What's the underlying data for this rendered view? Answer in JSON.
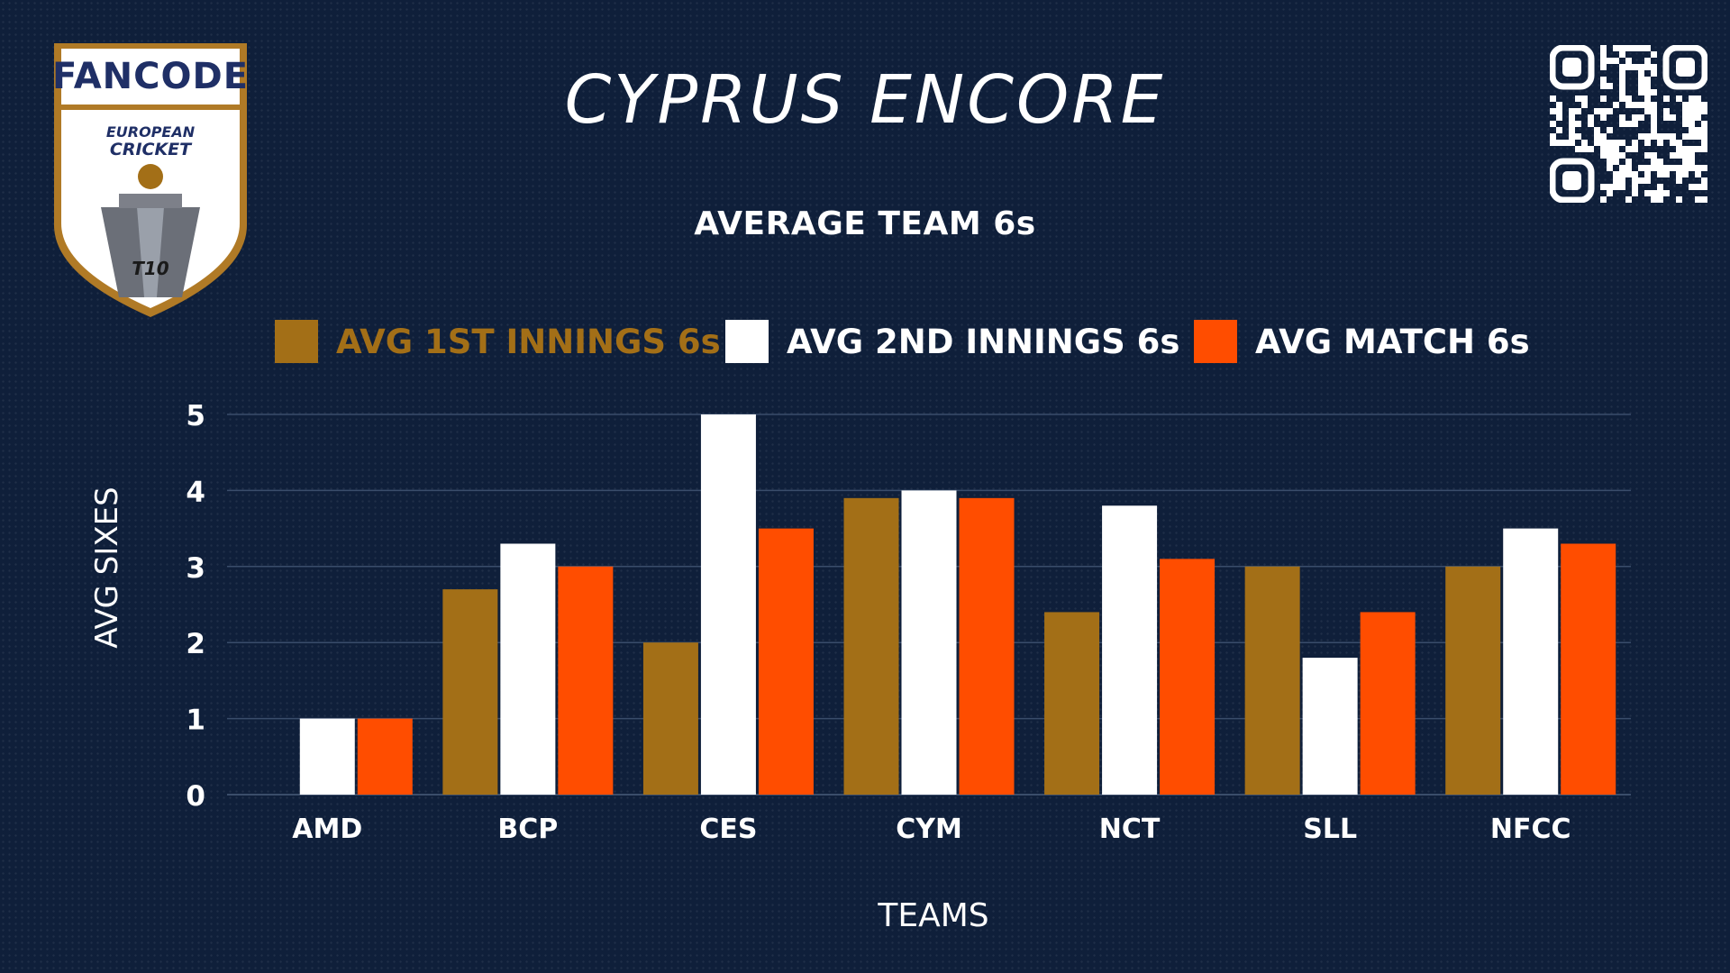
{
  "header": {
    "logo": {
      "brand": "FANCODE",
      "line1": "EUROPEAN",
      "line2": "CRICKET",
      "badge": "T10",
      "icon": "cricket-trophy-shield-logo"
    },
    "title": "CYPRUS ENCORE",
    "qr_icon": "qr-code-icon"
  },
  "colors": {
    "background": "#0f1f3a",
    "first_innings": "#a36f17",
    "second_innings": "#ffffff",
    "match": "#ff4d00",
    "gridline": "#3a4d6b"
  },
  "chart_data": {
    "type": "bar",
    "title": "AVERAGE TEAM 6s",
    "xlabel": "TEAMS",
    "ylabel": "AVG SIXES",
    "ylim": [
      0,
      5
    ],
    "yticks": [
      0,
      1,
      2,
      3,
      4,
      5
    ],
    "grid": true,
    "legend_position": "top",
    "categories": [
      "AMD",
      "BCP",
      "CES",
      "CYM",
      "NCT",
      "SLL",
      "NFCC"
    ],
    "series": [
      {
        "name": "AVG 1ST INNINGS 6s",
        "color": "#a36f17",
        "values": [
          0,
          2.7,
          2,
          3.9,
          2.4,
          3,
          3
        ]
      },
      {
        "name": "AVG 2ND INNINGS 6s",
        "color": "#ffffff",
        "values": [
          1,
          3.3,
          5,
          4,
          3.8,
          1.8,
          3.5
        ]
      },
      {
        "name": "AVG MATCH 6s",
        "color": "#ff4d00",
        "values": [
          1,
          3,
          3.5,
          3.9,
          3.1,
          2.4,
          3.3
        ]
      }
    ]
  }
}
